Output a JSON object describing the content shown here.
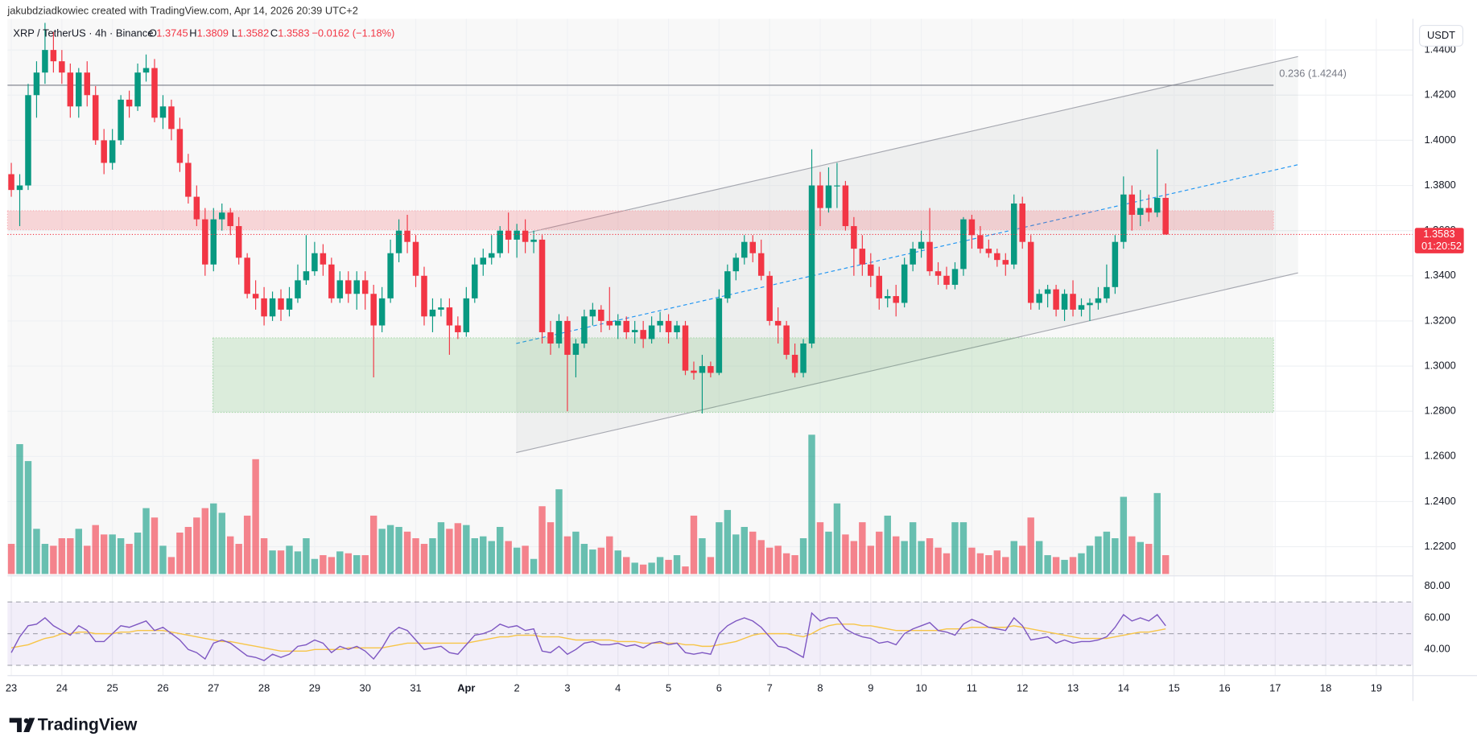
{
  "chart_data": {
    "type": "candlestick",
    "credit": "jakubdziadkowiec created with TradingView.com, Apr 14, 2026 20:39 UTC+2",
    "symbol": "XRP / TetherUS · 4h · Binance",
    "ohlc_letters": [
      "O",
      "H",
      "L",
      "C"
    ],
    "ohlc": [
      1.3745,
      1.3809,
      1.3582,
      1.3583
    ],
    "change": "−0.0162 (−1.18%)",
    "currency": "USDT",
    "last_price": 1.3583,
    "countdown": "01:20:52",
    "brand": "TradingView",
    "up_color": "#089981",
    "down_color": "#f23645",
    "ylim": [
      1.2071,
      1.4538
    ],
    "yticks": [
      {
        "value": 1.44,
        "label": "1.4400"
      },
      {
        "value": 1.42,
        "label": "1.4200"
      },
      {
        "value": 1.4,
        "label": "1.4000"
      },
      {
        "value": 1.38,
        "label": "1.3800"
      },
      {
        "value": 1.36,
        "label": "1.3600"
      },
      {
        "value": 1.34,
        "label": "1.3400"
      },
      {
        "value": 1.32,
        "label": "1.3200"
      },
      {
        "value": 1.3,
        "label": "1.3000"
      },
      {
        "value": 1.28,
        "label": "1.2800"
      },
      {
        "value": 1.26,
        "label": "1.2600"
      },
      {
        "value": 1.24,
        "label": "1.2400"
      },
      {
        "value": 1.22,
        "label": "1.2200"
      }
    ],
    "xticks": [
      {
        "value": 0,
        "label": "23"
      },
      {
        "value": 6,
        "label": "24"
      },
      {
        "value": 12,
        "label": "25"
      },
      {
        "value": 18,
        "label": "26"
      },
      {
        "value": 24,
        "label": "27"
      },
      {
        "value": 30,
        "label": "28"
      },
      {
        "value": 36,
        "label": "29"
      },
      {
        "value": 42,
        "label": "30"
      },
      {
        "value": 48,
        "label": "31"
      },
      {
        "value": 54,
        "label": "Apr"
      },
      {
        "value": 60,
        "label": "2"
      },
      {
        "value": 66,
        "label": "3"
      },
      {
        "value": 72,
        "label": "4"
      },
      {
        "value": 78,
        "label": "5"
      },
      {
        "value": 84,
        "label": "6"
      },
      {
        "value": 90,
        "label": "7"
      },
      {
        "value": 96,
        "label": "8"
      },
      {
        "value": 102,
        "label": "9"
      },
      {
        "value": 108,
        "label": "10"
      },
      {
        "value": 114,
        "label": "11"
      },
      {
        "value": 120,
        "label": "12"
      },
      {
        "value": 126,
        "label": "13"
      },
      {
        "value": 132,
        "label": "14"
      },
      {
        "value": 138,
        "label": "15"
      },
      {
        "value": 144,
        "label": "16"
      },
      {
        "value": 150,
        "label": "17"
      },
      {
        "value": 156,
        "label": "18"
      },
      {
        "value": 162,
        "label": "19"
      }
    ],
    "fib": {
      "label": "0.236 (1.4244)",
      "price": 1.4244
    },
    "resistance_zone": [
      1.3688,
      1.3604
    ],
    "support_zone": [
      1.3125,
      1.2795
    ],
    "channel": {
      "upper": [
        1.3579,
        1.4371
      ],
      "mid": [
        1.31,
        1.3892
      ],
      "lower": [
        1.2617,
        1.3413
      ]
    },
    "candles": [
      [
        1.385,
        1.39,
        1.375,
        1.378
      ],
      [
        1.378,
        1.385,
        1.362,
        1.38
      ],
      [
        1.38,
        1.425,
        1.378,
        1.42
      ],
      [
        1.42,
        1.435,
        1.41,
        1.43
      ],
      [
        1.43,
        1.452,
        1.425,
        1.44
      ],
      [
        1.44,
        1.448,
        1.43,
        1.435
      ],
      [
        1.435,
        1.44,
        1.425,
        1.43
      ],
      [
        1.43,
        1.434,
        1.41,
        1.415
      ],
      [
        1.415,
        1.432,
        1.41,
        1.43
      ],
      [
        1.43,
        1.435,
        1.415,
        1.42
      ],
      [
        1.42,
        1.424,
        1.398,
        1.4
      ],
      [
        1.4,
        1.405,
        1.385,
        1.39
      ],
      [
        1.39,
        1.405,
        1.387,
        1.4
      ],
      [
        1.4,
        1.42,
        1.398,
        1.418
      ],
      [
        1.418,
        1.422,
        1.41,
        1.415
      ],
      [
        1.415,
        1.434,
        1.413,
        1.43
      ],
      [
        1.43,
        1.438,
        1.426,
        1.432
      ],
      [
        1.432,
        1.436,
        1.408,
        1.41
      ],
      [
        1.41,
        1.42,
        1.405,
        1.415
      ],
      [
        1.415,
        1.418,
        1.4,
        1.405
      ],
      [
        1.405,
        1.41,
        1.386,
        1.39
      ],
      [
        1.39,
        1.394,
        1.372,
        1.375
      ],
      [
        1.375,
        1.38,
        1.362,
        1.365
      ],
      [
        1.365,
        1.37,
        1.34,
        1.345
      ],
      [
        1.345,
        1.37,
        1.342,
        1.365
      ],
      [
        1.365,
        1.372,
        1.36,
        1.368
      ],
      [
        1.368,
        1.37,
        1.358,
        1.362
      ],
      [
        1.362,
        1.366,
        1.345,
        1.348
      ],
      [
        1.348,
        1.35,
        1.33,
        1.332
      ],
      [
        1.332,
        1.338,
        1.325,
        1.33
      ],
      [
        1.33,
        1.335,
        1.318,
        1.322
      ],
      [
        1.322,
        1.333,
        1.32,
        1.33
      ],
      [
        1.33,
        1.334,
        1.32,
        1.325
      ],
      [
        1.325,
        1.335,
        1.322,
        1.33
      ],
      [
        1.33,
        1.345,
        1.328,
        1.338
      ],
      [
        1.338,
        1.358,
        1.336,
        1.342
      ],
      [
        1.342,
        1.355,
        1.34,
        1.35
      ],
      [
        1.35,
        1.354,
        1.34,
        1.345
      ],
      [
        1.345,
        1.348,
        1.328,
        1.33
      ],
      [
        1.33,
        1.342,
        1.328,
        1.338
      ],
      [
        1.338,
        1.342,
        1.328,
        1.332
      ],
      [
        1.332,
        1.342,
        1.325,
        1.338
      ],
      [
        1.338,
        1.342,
        1.325,
        1.332
      ],
      [
        1.332,
        1.336,
        1.295,
        1.318
      ],
      [
        1.318,
        1.335,
        1.315,
        1.33
      ],
      [
        1.33,
        1.356,
        1.328,
        1.35
      ],
      [
        1.35,
        1.365,
        1.346,
        1.36
      ],
      [
        1.36,
        1.367,
        1.35,
        1.355
      ],
      [
        1.355,
        1.358,
        1.335,
        1.34
      ],
      [
        1.34,
        1.344,
        1.318,
        1.322
      ],
      [
        1.322,
        1.33,
        1.315,
        1.325
      ],
      [
        1.325,
        1.33,
        1.322,
        1.326
      ],
      [
        1.326,
        1.33,
        1.305,
        1.318
      ],
      [
        1.318,
        1.322,
        1.312,
        1.315
      ],
      [
        1.315,
        1.335,
        1.313,
        1.33
      ],
      [
        1.33,
        1.348,
        1.328,
        1.345
      ],
      [
        1.345,
        1.352,
        1.34,
        1.348
      ],
      [
        1.348,
        1.358,
        1.345,
        1.35
      ],
      [
        1.35,
        1.362,
        1.348,
        1.36
      ],
      [
        1.36,
        1.368,
        1.35,
        1.356
      ],
      [
        1.356,
        1.363,
        1.348,
        1.36
      ],
      [
        1.36,
        1.365,
        1.35,
        1.355
      ],
      [
        1.355,
        1.36,
        1.35,
        1.356
      ],
      [
        1.356,
        1.358,
        1.31,
        1.315
      ],
      [
        1.315,
        1.32,
        1.305,
        1.31
      ],
      [
        1.31,
        1.323,
        1.308,
        1.32
      ],
      [
        1.32,
        1.322,
        1.28,
        1.305
      ],
      [
        1.305,
        1.312,
        1.295,
        1.31
      ],
      [
        1.31,
        1.325,
        1.308,
        1.322
      ],
      [
        1.322,
        1.328,
        1.318,
        1.325
      ],
      [
        1.325,
        1.327,
        1.315,
        1.32
      ],
      [
        1.32,
        1.335,
        1.316,
        1.318
      ],
      [
        1.318,
        1.323,
        1.312,
        1.32
      ],
      [
        1.32,
        1.322,
        1.312,
        1.315
      ],
      [
        1.315,
        1.32,
        1.31,
        1.316
      ],
      [
        1.316,
        1.32,
        1.308,
        1.312
      ],
      [
        1.312,
        1.322,
        1.31,
        1.318
      ],
      [
        1.318,
        1.324,
        1.315,
        1.32
      ],
      [
        1.32,
        1.323,
        1.31,
        1.315
      ],
      [
        1.315,
        1.32,
        1.312,
        1.318
      ],
      [
        1.318,
        1.32,
        1.296,
        1.298
      ],
      [
        1.298,
        1.302,
        1.294,
        1.297
      ],
      [
        1.297,
        1.305,
        1.279,
        1.3
      ],
      [
        1.3,
        1.302,
        1.295,
        1.297
      ],
      [
        1.297,
        1.334,
        1.296,
        1.33
      ],
      [
        1.33,
        1.345,
        1.328,
        1.342
      ],
      [
        1.342,
        1.35,
        1.338,
        1.348
      ],
      [
        1.348,
        1.358,
        1.345,
        1.355
      ],
      [
        1.355,
        1.358,
        1.346,
        1.35
      ],
      [
        1.35,
        1.356,
        1.338,
        1.34
      ],
      [
        1.34,
        1.342,
        1.318,
        1.32
      ],
      [
        1.32,
        1.326,
        1.31,
        1.318
      ],
      [
        1.318,
        1.32,
        1.303,
        1.305
      ],
      [
        1.305,
        1.31,
        1.295,
        1.297
      ],
      [
        1.297,
        1.312,
        1.295,
        1.31
      ],
      [
        1.31,
        1.396,
        1.308,
        1.38
      ],
      [
        1.38,
        1.386,
        1.362,
        1.37
      ],
      [
        1.37,
        1.388,
        1.368,
        1.38
      ],
      [
        1.38,
        1.39,
        1.37,
        1.38
      ],
      [
        1.38,
        1.382,
        1.36,
        1.362
      ],
      [
        1.362,
        1.366,
        1.34,
        1.352
      ],
      [
        1.352,
        1.358,
        1.34,
        1.345
      ],
      [
        1.345,
        1.35,
        1.335,
        1.34
      ],
      [
        1.34,
        1.344,
        1.325,
        1.33
      ],
      [
        1.33,
        1.334,
        1.326,
        1.331
      ],
      [
        1.331,
        1.336,
        1.322,
        1.328
      ],
      [
        1.328,
        1.348,
        1.326,
        1.345
      ],
      [
        1.345,
        1.355,
        1.342,
        1.352
      ],
      [
        1.352,
        1.36,
        1.348,
        1.355
      ],
      [
        1.355,
        1.37,
        1.34,
        1.342
      ],
      [
        1.342,
        1.346,
        1.336,
        1.34
      ],
      [
        1.34,
        1.344,
        1.334,
        1.336
      ],
      [
        1.336,
        1.346,
        1.334,
        1.343
      ],
      [
        1.343,
        1.366,
        1.34,
        1.365
      ],
      [
        1.365,
        1.367,
        1.352,
        1.358
      ],
      [
        1.358,
        1.362,
        1.35,
        1.352
      ],
      [
        1.352,
        1.356,
        1.348,
        1.35
      ],
      [
        1.35,
        1.352,
        1.344,
        1.347
      ],
      [
        1.347,
        1.35,
        1.34,
        1.345
      ],
      [
        1.345,
        1.376,
        1.343,
        1.372
      ],
      [
        1.372,
        1.375,
        1.352,
        1.355
      ],
      [
        1.355,
        1.358,
        1.325,
        1.328
      ],
      [
        1.328,
        1.334,
        1.325,
        1.332
      ],
      [
        1.332,
        1.336,
        1.326,
        1.334
      ],
      [
        1.334,
        1.336,
        1.322,
        1.325
      ],
      [
        1.325,
        1.334,
        1.32,
        1.332
      ],
      [
        1.332,
        1.338,
        1.322,
        1.325
      ],
      [
        1.325,
        1.33,
        1.322,
        1.327
      ],
      [
        1.327,
        1.33,
        1.32,
        1.328
      ],
      [
        1.328,
        1.335,
        1.325,
        1.33
      ],
      [
        1.33,
        1.345,
        1.328,
        1.335
      ],
      [
        1.335,
        1.358,
        1.332,
        1.355
      ],
      [
        1.355,
        1.384,
        1.352,
        1.376
      ],
      [
        1.376,
        1.38,
        1.36,
        1.367
      ],
      [
        1.367,
        1.378,
        1.362,
        1.37
      ],
      [
        1.37,
        1.376,
        1.364,
        1.368
      ],
      [
        1.368,
        1.396,
        1.366,
        1.3745
      ],
      [
        1.3745,
        1.3809,
        1.3582,
        1.3583
      ]
    ],
    "volume": [
      32,
      138,
      120,
      48,
      32,
      30,
      38,
      38,
      48,
      30,
      52,
      42,
      42,
      38,
      32,
      44,
      70,
      60,
      30,
      18,
      44,
      50,
      60,
      70,
      75,
      65,
      40,
      32,
      62,
      122,
      38,
      25,
      25,
      30,
      24,
      38,
      16,
      20,
      18,
      24,
      22,
      20,
      20,
      62,
      48,
      52,
      50,
      45,
      38,
      32,
      38,
      55,
      48,
      54,
      52,
      38,
      40,
      35,
      50,
      35,
      28,
      30,
      16,
      72,
      55,
      90,
      40,
      45,
      32,
      26,
      28,
      40,
      25,
      18,
      12,
      10,
      12,
      18,
      15,
      20,
      8,
      62,
      38,
      18,
      55,
      68,
      42,
      50,
      45,
      36,
      28,
      30,
      22,
      20,
      38,
      148,
      55,
      45,
      75,
      42,
      35,
      55,
      30,
      45,
      62,
      40,
      35,
      55,
      35,
      38,
      28,
      22,
      55,
      55,
      28,
      22,
      20,
      25,
      18,
      35,
      30,
      60,
      35,
      20,
      18,
      15,
      18,
      22,
      30,
      40,
      45,
      38,
      82,
      40,
      34,
      32,
      86,
      20
    ],
    "rsi": [
      38,
      48,
      55,
      56,
      60,
      55,
      52,
      49,
      55,
      52,
      45,
      45,
      50,
      55,
      54,
      56,
      58,
      52,
      54,
      50,
      46,
      40,
      38,
      34,
      44,
      46,
      44,
      40,
      36,
      35,
      33,
      37,
      35,
      37,
      42,
      43,
      46,
      44,
      38,
      42,
      40,
      42,
      39,
      34,
      41,
      50,
      54,
      52,
      46,
      40,
      41,
      42,
      38,
      37,
      43,
      49,
      50,
      52,
      56,
      54,
      55,
      52,
      53,
      39,
      38,
      42,
      37,
      40,
      44,
      45,
      43,
      43,
      44,
      42,
      43,
      41,
      44,
      45,
      43,
      44,
      38,
      37,
      38,
      37,
      50,
      55,
      58,
      60,
      58,
      54,
      48,
      42,
      41,
      38,
      35,
      63,
      58,
      60,
      60,
      53,
      50,
      48,
      47,
      44,
      45,
      43,
      50,
      53,
      55,
      57,
      52,
      51,
      49,
      56,
      59,
      57,
      54,
      53,
      52,
      60,
      55,
      46,
      47,
      48,
      44,
      46,
      44,
      45,
      45,
      46,
      48,
      54,
      62,
      58,
      60,
      58,
      62,
      55
    ],
    "rsi_ma": [
      41,
      42,
      43,
      45,
      47,
      48,
      50,
      50,
      51,
      51,
      50,
      50,
      50,
      51,
      51,
      52,
      52,
      52,
      52,
      51,
      50,
      49,
      48,
      47,
      46,
      45,
      45,
      44,
      43,
      42,
      41,
      40,
      39,
      39,
      39,
      39,
      40,
      40,
      40,
      40,
      41,
      41,
      41,
      41,
      41,
      42,
      43,
      44,
      44,
      44,
      44,
      44,
      44,
      44,
      44,
      45,
      46,
      47,
      48,
      48,
      49,
      49,
      49,
      48,
      48,
      48,
      47,
      46,
      46,
      46,
      46,
      46,
      45,
      45,
      45,
      44,
      44,
      44,
      44,
      44,
      43,
      43,
      42,
      42,
      43,
      44,
      45,
      47,
      49,
      50,
      50,
      50,
      50,
      49,
      48,
      50,
      53,
      55,
      56,
      56,
      56,
      55,
      55,
      54,
      53,
      52,
      52,
      52,
      52,
      52,
      52,
      53,
      53,
      53,
      54,
      54,
      54,
      54,
      54,
      55,
      54,
      53,
      52,
      51,
      50,
      49,
      48,
      47,
      47,
      47,
      47,
      48,
      49,
      50,
      51,
      51,
      52,
      53
    ],
    "rsi_color": "#7e57c2",
    "rsi_ma_color": "#f7c548",
    "rsi_ylim": [
      23.5,
      86.5
    ],
    "rsi_yticks": [
      {
        "value": 80,
        "label": "80.00"
      },
      {
        "value": 60,
        "label": "60.00"
      },
      {
        "value": 40,
        "label": "40.00"
      }
    ],
    "rsi_levels": [
      70,
      50,
      30
    ]
  }
}
